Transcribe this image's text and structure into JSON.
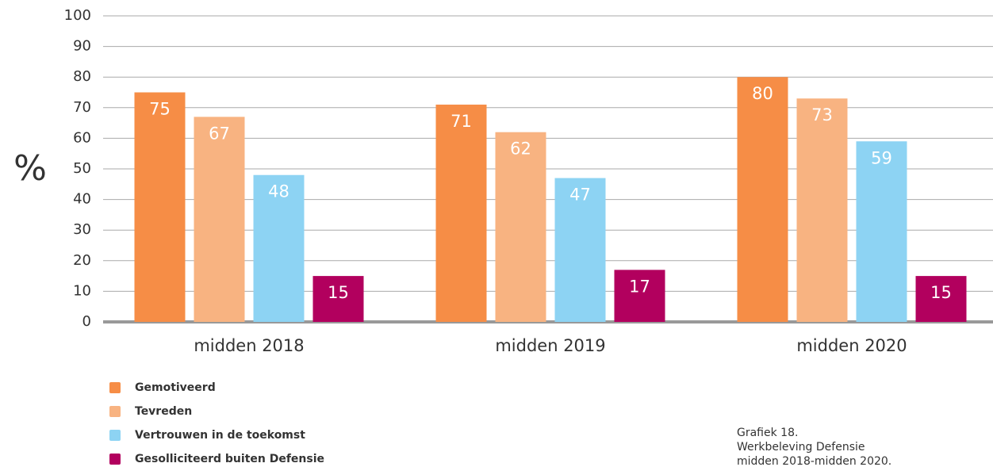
{
  "chart_data": {
    "type": "bar",
    "y_axis_label": "%",
    "categories": [
      "midden 2018",
      "midden 2019",
      "midden 2020"
    ],
    "series": [
      {
        "name": "Gemotiveerd",
        "color": "#f68d46",
        "values": [
          75,
          71,
          80
        ]
      },
      {
        "name": "Tevreden",
        "color": "#f8b381",
        "values": [
          67,
          62,
          73
        ]
      },
      {
        "name": "Vertrouwen in de toekomst",
        "color": "#8dd3f3",
        "values": [
          48,
          47,
          59
        ]
      },
      {
        "name": "Gesolliciteerd buiten Defensie",
        "color": "#b2005e",
        "values": [
          15,
          17,
          15
        ]
      }
    ],
    "ylim": [
      0,
      100
    ],
    "yticks": [
      0,
      10,
      20,
      30,
      40,
      50,
      60,
      70,
      80,
      90,
      100
    ],
    "grid": true,
    "legend": "bottom-left",
    "caption": [
      "Grafiek 18.",
      "Werkbeleving Defensie",
      "midden 2018-midden 2020."
    ]
  }
}
